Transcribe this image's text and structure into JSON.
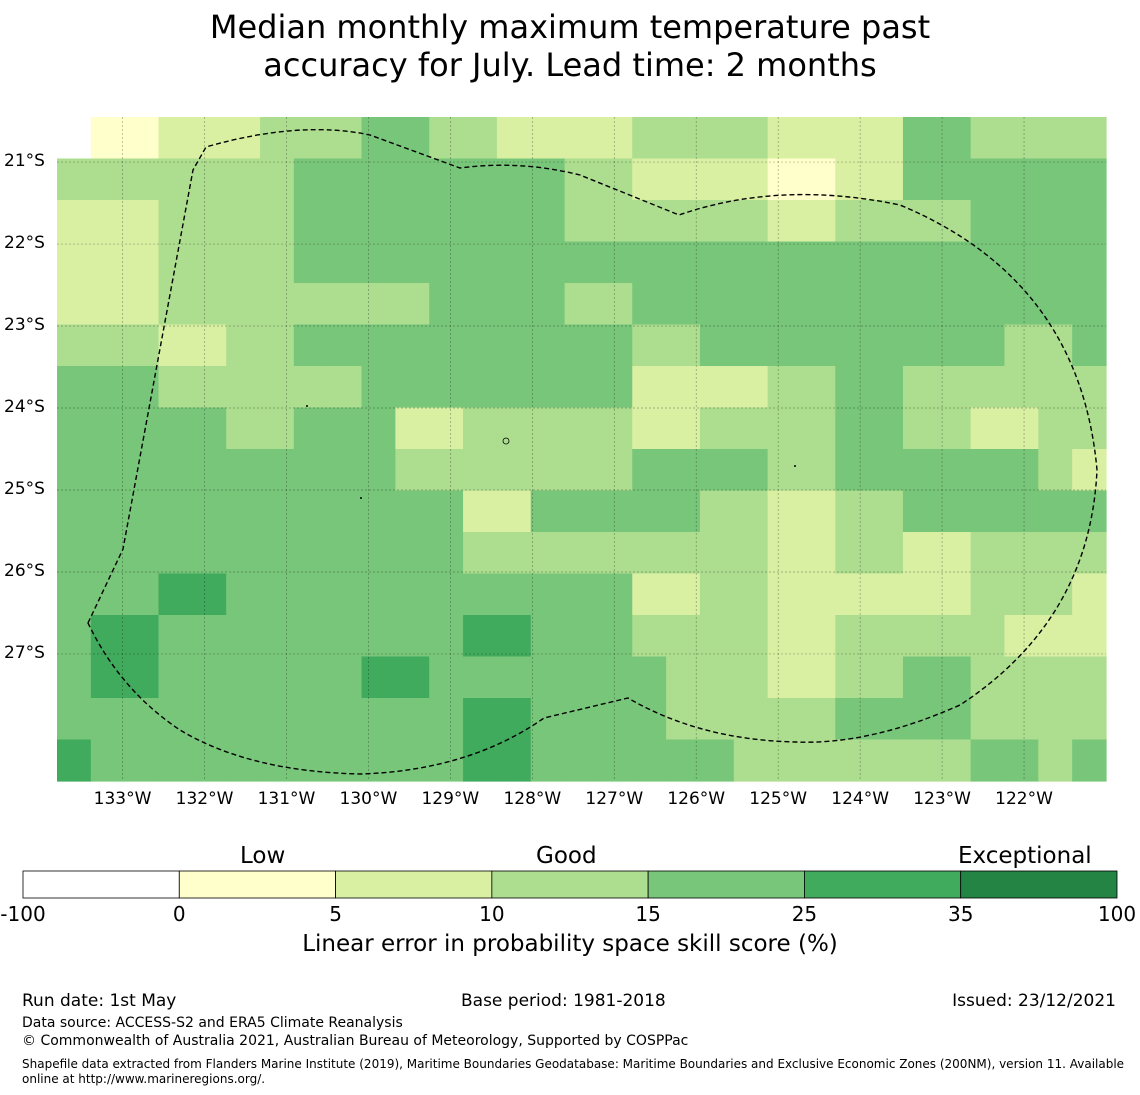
{
  "title_line1": "Median monthly maximum temperature past",
  "title_line2": "accuracy for July. Lead time: 2 months",
  "map": {
    "lon_min": -133.8,
    "lon_max": -121.0,
    "lat_max": -20.45,
    "lat_min": -28.55,
    "cell_deg": 0.833,
    "lon_ticks": [
      {
        "value": -133,
        "label": "133°W"
      },
      {
        "value": -132,
        "label": "132°W"
      },
      {
        "value": -131,
        "label": "131°W"
      },
      {
        "value": -130,
        "label": "130°W"
      },
      {
        "value": -129,
        "label": "129°W"
      },
      {
        "value": -128,
        "label": "128°W"
      },
      {
        "value": -127,
        "label": "127°W"
      },
      {
        "value": -126,
        "label": "126°W"
      },
      {
        "value": -125,
        "label": "125°W"
      },
      {
        "value": -124,
        "label": "124°W"
      },
      {
        "value": -123,
        "label": "123°W"
      },
      {
        "value": -122,
        "label": "122°W"
      }
    ],
    "lat_ticks": [
      {
        "value": -21,
        "label": "21°S"
      },
      {
        "value": -22,
        "label": "22°S"
      },
      {
        "value": -23,
        "label": "23°S"
      },
      {
        "value": -24,
        "label": "24°S"
      },
      {
        "value": -25,
        "label": "25°S"
      },
      {
        "value": -26,
        "label": "26°S"
      },
      {
        "value": -27,
        "label": "27°S"
      }
    ],
    "grid_classes_note": "",
    "grid": [
      [
        0,
        1,
        1,
        2,
        2,
        2,
        3,
        3,
        3,
        4,
        4,
        3,
        3,
        2,
        2,
        2,
        2,
        3,
        3,
        3,
        3,
        2,
        2,
        2,
        2,
        4,
        4,
        3,
        3,
        3,
        3
      ],
      [
        3,
        3,
        3,
        3,
        3,
        3,
        3,
        4,
        4,
        4,
        4,
        4,
        4,
        4,
        4,
        3,
        3,
        2,
        2,
        2,
        2,
        1,
        1,
        2,
        2,
        4,
        4,
        4,
        4,
        4,
        4
      ],
      [
        2,
        2,
        2,
        3,
        3,
        3,
        3,
        4,
        4,
        4,
        4,
        4,
        4,
        4,
        4,
        3,
        3,
        3,
        3,
        3,
        3,
        2,
        2,
        3,
        3,
        3,
        3,
        4,
        4,
        4,
        4
      ],
      [
        2,
        2,
        2,
        3,
        3,
        3,
        3,
        4,
        4,
        4,
        4,
        4,
        4,
        4,
        4,
        4,
        4,
        4,
        4,
        4,
        4,
        4,
        4,
        4,
        4,
        4,
        4,
        4,
        4,
        4,
        4
      ],
      [
        2,
        2,
        2,
        3,
        3,
        3,
        3,
        3,
        3,
        3,
        3,
        4,
        4,
        4,
        4,
        3,
        3,
        4,
        4,
        4,
        4,
        4,
        4,
        4,
        4,
        4,
        4,
        4,
        4,
        4,
        4
      ],
      [
        3,
        3,
        3,
        2,
        2,
        3,
        3,
        4,
        4,
        4,
        4,
        4,
        4,
        4,
        4,
        4,
        4,
        3,
        3,
        4,
        4,
        4,
        4,
        4,
        4,
        4,
        4,
        4,
        3,
        3,
        4
      ],
      [
        4,
        4,
        4,
        3,
        3,
        3,
        3,
        3,
        3,
        4,
        4,
        4,
        4,
        4,
        4,
        4,
        4,
        2,
        2,
        2,
        2,
        3,
        3,
        4,
        4,
        3,
        3,
        3,
        3,
        3,
        3
      ],
      [
        4,
        4,
        4,
        4,
        4,
        3,
        3,
        4,
        4,
        4,
        2,
        2,
        3,
        3,
        3,
        3,
        3,
        2,
        2,
        3,
        3,
        3,
        3,
        4,
        4,
        3,
        3,
        2,
        2,
        3,
        3
      ],
      [
        4,
        4,
        4,
        4,
        4,
        4,
        4,
        4,
        4,
        4,
        3,
        3,
        3,
        3,
        3,
        3,
        3,
        4,
        4,
        4,
        4,
        3,
        3,
        4,
        4,
        4,
        4,
        4,
        4,
        3,
        2
      ],
      [
        4,
        4,
        4,
        4,
        4,
        4,
        4,
        4,
        4,
        4,
        4,
        4,
        2,
        2,
        4,
        4,
        4,
        4,
        4,
        3,
        3,
        2,
        2,
        3,
        3,
        4,
        4,
        4,
        4,
        4,
        4
      ],
      [
        4,
        4,
        4,
        4,
        4,
        4,
        4,
        4,
        4,
        4,
        4,
        4,
        3,
        3,
        3,
        3,
        3,
        3,
        3,
        3,
        3,
        2,
        2,
        3,
        3,
        2,
        2,
        3,
        3,
        3,
        3
      ],
      [
        4,
        4,
        4,
        5,
        5,
        4,
        4,
        4,
        4,
        4,
        4,
        4,
        4,
        4,
        4,
        4,
        4,
        2,
        2,
        3,
        3,
        2,
        2,
        2,
        2,
        2,
        2,
        3,
        3,
        3,
        2
      ],
      [
        4,
        5,
        5,
        4,
        4,
        4,
        4,
        4,
        4,
        4,
        4,
        4,
        5,
        5,
        4,
        4,
        4,
        3,
        3,
        3,
        3,
        2,
        2,
        3,
        3,
        3,
        3,
        3,
        2,
        2,
        2
      ],
      [
        4,
        5,
        5,
        4,
        4,
        4,
        4,
        4,
        4,
        5,
        5,
        4,
        4,
        4,
        4,
        4,
        4,
        4,
        3,
        3,
        3,
        2,
        2,
        3,
        3,
        4,
        4,
        3,
        3,
        3,
        3
      ],
      [
        4,
        4,
        4,
        4,
        4,
        4,
        4,
        4,
        4,
        4,
        4,
        4,
        5,
        5,
        4,
        4,
        4,
        4,
        3,
        3,
        3,
        3,
        3,
        4,
        4,
        4,
        4,
        3,
        3,
        3,
        3
      ],
      [
        5,
        4,
        4,
        4,
        4,
        4,
        4,
        4,
        4,
        4,
        4,
        4,
        5,
        5,
        4,
        4,
        4,
        4,
        4,
        4,
        3,
        3,
        3,
        3,
        3,
        3,
        3,
        4,
        4,
        3,
        4
      ]
    ]
  },
  "colorbar": {
    "categories": [
      "Low",
      "Good",
      "Exceptional"
    ],
    "ticks": [
      "-100",
      "0",
      "5",
      "10",
      "15",
      "25",
      "35",
      "100"
    ],
    "colors": [
      "#ffffff",
      "#ffffcc",
      "#d9f0a3",
      "#addd8e",
      "#78c679",
      "#41ab5d",
      "#238443"
    ],
    "label": "Linear error in probability space skill score (%)"
  },
  "footer": {
    "run_date": "Run date: 1st May",
    "base_period": "Base period: 1981-2018",
    "issued": "Issued: 23/12/2021",
    "data_source": "Data source: ACCESS-S2 and ERA5 Climate Reanalysis",
    "copyright": "© Commonwealth of Australia 2021, Australian Bureau of Meteorology, Supported by COSPPac",
    "shapefile": "Shapefile data extracted from Flanders Marine Institute (2019), Maritime Boundaries Geodatabase: Maritime Boundaries and Exclusive Economic Zones (200NM), version 11. Available online at http://www.marineregions.org/."
  }
}
